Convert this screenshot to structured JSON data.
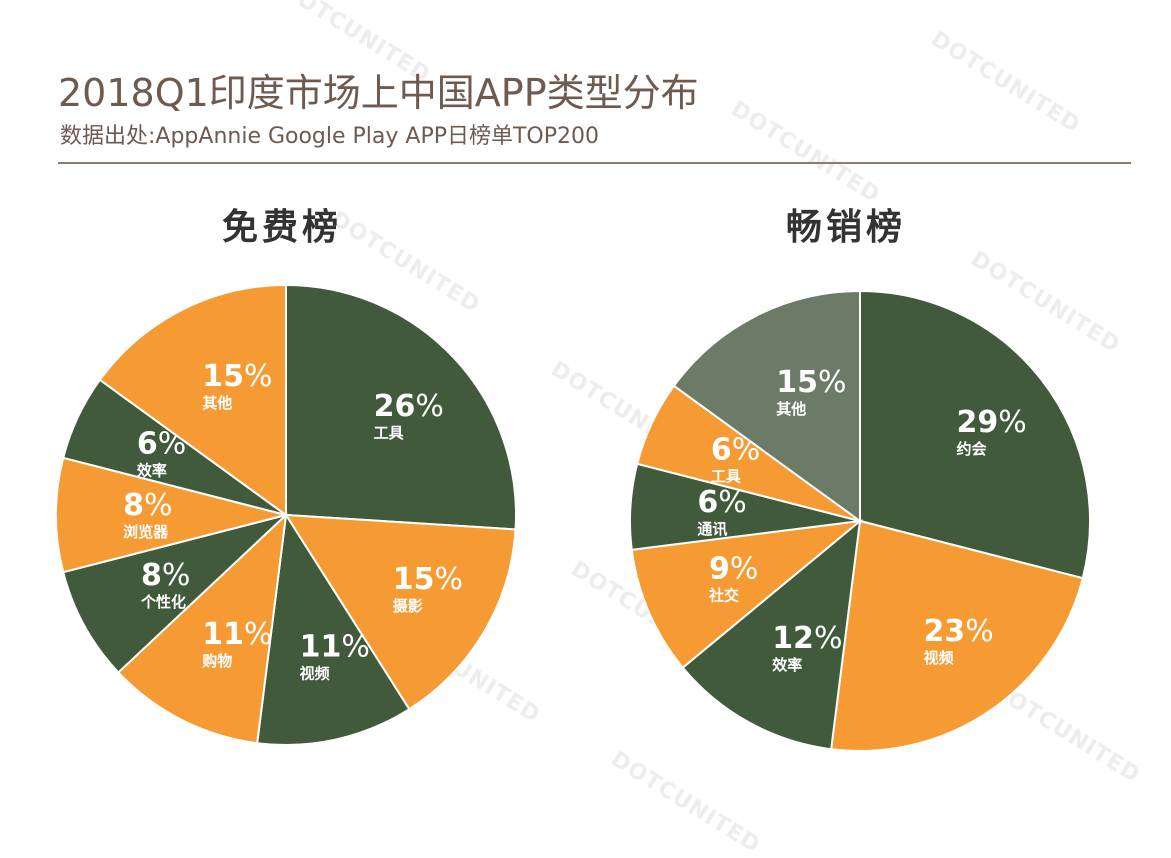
{
  "header": {
    "title": "2018Q1印度市场上中国APP类型分布",
    "subtitle": "数据出处:AppAnnie Google Play APP日榜单TOP200"
  },
  "watermark": "DOTCUNITED",
  "colors": {
    "green": "#405a3b",
    "orange": "#f69a33",
    "gray": "#6b7b67"
  },
  "chart_data": [
    {
      "type": "pie",
      "title": "免费榜",
      "slices": [
        {
          "label": "工具",
          "value": 26,
          "color": "#405a3b"
        },
        {
          "label": "摄影",
          "value": 15,
          "color": "#f69a33"
        },
        {
          "label": "视频",
          "value": 11,
          "color": "#405a3b"
        },
        {
          "label": "购物",
          "value": 11,
          "color": "#f69a33"
        },
        {
          "label": "个性化",
          "value": 8,
          "color": "#405a3b"
        },
        {
          "label": "浏览器",
          "value": 8,
          "color": "#f69a33"
        },
        {
          "label": "效率",
          "value": 6,
          "color": "#405a3b"
        },
        {
          "label": "其他",
          "value": 15,
          "color": "#f69a33"
        }
      ]
    },
    {
      "type": "pie",
      "title": "畅销榜",
      "slices": [
        {
          "label": "约会",
          "value": 29,
          "color": "#405a3b"
        },
        {
          "label": "视频",
          "value": 23,
          "color": "#f69a33"
        },
        {
          "label": "效率",
          "value": 12,
          "color": "#405a3b"
        },
        {
          "label": "社交",
          "value": 9,
          "color": "#f69a33"
        },
        {
          "label": "通讯",
          "value": 6,
          "color": "#405a3b"
        },
        {
          "label": "工具",
          "value": 6,
          "color": "#f69a33"
        },
        {
          "label": "其他",
          "value": 15,
          "color": "#6b7b67"
        }
      ]
    }
  ]
}
